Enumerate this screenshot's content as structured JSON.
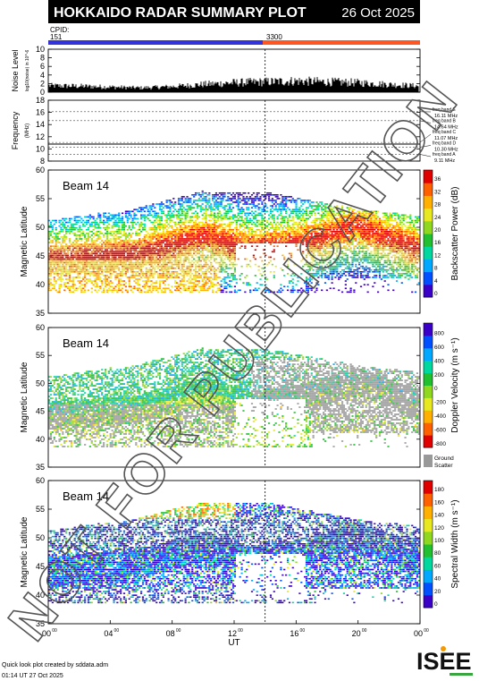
{
  "header": {
    "title": "HOKKAIDO RADAR SUMMARY PLOT",
    "date": "26 Oct 2025",
    "cpid_label": "CPID:",
    "cpid_values": [
      "151",
      "3300"
    ]
  },
  "footer": {
    "line1": "Quick look plot created by sddata.adm",
    "line2": "01:14 UT 27 Oct 2025",
    "logo": "ISEE"
  },
  "watermark": "NOT FOR PUBLICATION",
  "colors": {
    "cpid_151": "#3333dd",
    "cpid_3300": "#ff5522",
    "ground_scatter": "#999999"
  },
  "chart_data": [
    {
      "type": "area",
      "panel": "noise",
      "ylabel": "Noise Level",
      "ylabel_sub": "log10(noise) in 10^-6",
      "yticks": [
        "0",
        "2",
        "4",
        "6",
        "8",
        "10"
      ],
      "ylim": [
        0,
        10
      ],
      "x": [
        0,
        2,
        4,
        6,
        8,
        10,
        12,
        14,
        16,
        18,
        20,
        22,
        24
      ],
      "values": [
        1.5,
        1.4,
        1.2,
        1.0,
        1.3,
        1.8,
        2.2,
        2.4,
        2.6,
        2.4,
        2.2,
        1.8,
        1.4
      ]
    },
    {
      "type": "line",
      "panel": "frequency",
      "ylabel": "Frequency",
      "yunit": "(MHz)",
      "yticks": [
        "8",
        "10",
        "12",
        "14",
        "16",
        "18"
      ],
      "ylim": [
        8,
        18
      ],
      "bands": [
        {
          "label": "freq band E",
          "value": "16.11 MHz",
          "f": 16.11
        },
        {
          "label": "freq band B",
          "value": "14.64 MHz",
          "f": 14.64
        },
        {
          "label": "freq band C",
          "value": "11.07 MHz",
          "f": 11.07
        },
        {
          "label": "freq band D",
          "value": "10.30 MHz",
          "f": 10.3
        },
        {
          "label": "freq band A",
          "value": "9.11 MHz",
          "f": 9.11
        }
      ]
    },
    {
      "type": "heatmap",
      "panel": "power",
      "beam": "Beam 14",
      "ylabel": "Magnetic Latitude",
      "ylim": [
        35,
        60
      ],
      "yticks": [
        "35",
        "40",
        "45",
        "50",
        "55",
        "60"
      ],
      "colorbar_label": "Backscatter Power (dB)",
      "colorbar_ticks": [
        "0",
        "4",
        "8",
        "12",
        "16",
        "20",
        "24",
        "28",
        "32",
        "36"
      ],
      "colorbar_range": [
        0,
        36
      ]
    },
    {
      "type": "heatmap",
      "panel": "velocity",
      "beam": "Beam 14",
      "ylabel": "Magnetic Latitude",
      "ylim": [
        35,
        60
      ],
      "yticks": [
        "35",
        "40",
        "45",
        "50",
        "55",
        "60"
      ],
      "colorbar_label": "Doppler Velocity (m s⁻¹)",
      "colorbar_ticks": [
        "-800",
        "-600",
        "-400",
        "-200",
        "0",
        "200",
        "400",
        "600",
        "800"
      ],
      "colorbar_range": [
        -800,
        800
      ],
      "ground_scatter_label": [
        "Ground",
        "Scatter"
      ]
    },
    {
      "type": "heatmap",
      "panel": "width",
      "beam": "Beam 14",
      "ylabel": "Magnetic Latitude",
      "ylim": [
        35,
        60
      ],
      "yticks": [
        "35",
        "40",
        "45",
        "50",
        "55",
        "60"
      ],
      "colorbar_label": "Spectral Width (m s⁻¹)",
      "colorbar_ticks": [
        "0",
        "20",
        "40",
        "60",
        "80",
        "100",
        "120",
        "140",
        "160",
        "180"
      ],
      "colorbar_range": [
        0,
        180
      ],
      "xlabel": "UT",
      "xticks": [
        "00",
        "04",
        "08",
        "12",
        "16",
        "20",
        "00"
      ],
      "xlim": [
        0,
        24
      ],
      "cpid_change_ut": 14
    }
  ]
}
